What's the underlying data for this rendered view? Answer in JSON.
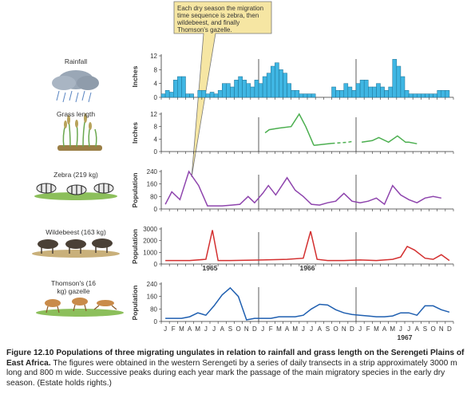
{
  "callout": "Each dry season the migration time sequence is zebra, then wildebeest, and finally Thomson's gazelle.",
  "labels": {
    "rainfall": "Rainfall",
    "grass": "Grass length",
    "zebra": "Zebra (219 kg)",
    "wildebeest": "Wildebeest (163 kg)",
    "thomson": "Thomson's (16 kg) gazelle"
  },
  "ylabels": {
    "inches": "Inches",
    "population": "Population"
  },
  "months": [
    "J",
    "F",
    "M",
    "A",
    "M",
    "J",
    "J",
    "A",
    "S",
    "O",
    "N",
    "D",
    "J",
    "F",
    "M",
    "A",
    "M",
    "J",
    "J",
    "A",
    "S",
    "O",
    "N",
    "D",
    "J",
    "F",
    "M",
    "A",
    "M",
    "J",
    "J",
    "A",
    "S",
    "O",
    "N",
    "D"
  ],
  "years": [
    "1965",
    "1966",
    "1967"
  ],
  "caption": {
    "number": "Figure 12.10",
    "title": "Populations of three migrating ungulates in relation to rainfall and grass length on the Serengeti Plains of East Africa.",
    "body": "The figures were obtained in the western Serengeti by a series of daily transects in a strip approximately 3000 m long and 800 m wide. Successive peaks during each year mark the passage of the main migratory species in the early dry season. (Estate holds rights.)"
  },
  "colors": {
    "rain": "#3fb6e3",
    "grass": "#4caf50",
    "zebra": "#8e44ad",
    "wildebeest": "#d32f2f",
    "thomson": "#1f5fb0"
  },
  "chart_data": [
    {
      "type": "bar",
      "name_label": "Rainfall",
      "ylabel": "Inches",
      "ylim": [
        0,
        12
      ],
      "yticks": [
        0,
        4,
        8,
        12
      ],
      "x": [
        0,
        0.5,
        1,
        1.5,
        2,
        2.5,
        3,
        3.5,
        4,
        4.5,
        5,
        5.5,
        6,
        6.5,
        7,
        7.5,
        8,
        8.5,
        9,
        9.5,
        10,
        10.5,
        11,
        11.5,
        12,
        12.5,
        13,
        13.5,
        14,
        14.5,
        15,
        15.5,
        16,
        16.5,
        17,
        17.5,
        18,
        18.5,
        19,
        19.5,
        20,
        20.5,
        21,
        21.5,
        22,
        22.5,
        23,
        23.5,
        24,
        24.5,
        25,
        25.5,
        26,
        26.5,
        27,
        27.5,
        28,
        28.5,
        29,
        29.5,
        30,
        30.5,
        31,
        31.5,
        32,
        32.5,
        33,
        33.5,
        34,
        34.5,
        35
      ],
      "values": [
        1,
        2,
        1.5,
        5,
        6,
        6,
        1,
        1,
        0,
        2,
        2,
        1,
        1.5,
        1,
        2,
        4,
        4,
        3,
        5,
        6,
        5,
        4,
        3,
        5,
        4,
        6,
        7,
        9,
        10,
        8,
        7,
        4,
        2,
        2,
        1,
        1,
        1,
        1,
        0,
        0,
        0,
        0,
        3,
        2,
        2,
        4,
        3,
        2,
        4,
        5,
        5,
        3,
        3,
        4,
        3,
        2,
        3,
        11,
        9,
        6,
        2,
        1,
        1,
        1,
        1,
        1,
        1,
        1,
        2,
        2,
        2
      ],
      "color": "#3fb6e3"
    },
    {
      "type": "line",
      "name_label": "Grass length",
      "ylabel": "Inches",
      "ylim": [
        0,
        12
      ],
      "yticks": [
        0,
        4,
        8,
        12
      ],
      "segments": [
        {
          "style": "solid",
          "x": [
            12.3,
            12.8,
            14,
            15.5,
            16.5,
            17.3,
            18.3
          ],
          "y": [
            6,
            7,
            7.5,
            8,
            12,
            8,
            2
          ]
        },
        {
          "style": "solid",
          "x": [
            18.3,
            20.5
          ],
          "y": [
            2,
            2.6
          ]
        },
        {
          "style": "dashed",
          "x": [
            20.5,
            22.5,
            23.2
          ],
          "y": [
            2.6,
            3,
            3.3
          ]
        },
        {
          "style": "solid",
          "x": [
            24.2,
            25.5,
            26.3,
            27.5,
            28.6,
            29.6,
            30,
            31
          ],
          "y": [
            3,
            3.5,
            4.5,
            3,
            5,
            3,
            3,
            2.5
          ]
        }
      ],
      "color": "#4caf50"
    },
    {
      "type": "line",
      "name_label": "Zebra (219 kg)",
      "ylabel": "Population",
      "ylim": [
        0,
        240
      ],
      "yticks": [
        0,
        80,
        160,
        240
      ],
      "x": [
        0,
        0.8,
        1.8,
        2.9,
        4.1,
        5.2,
        7,
        8.2,
        9.2,
        10.2,
        11,
        12,
        12.7,
        13.6,
        15,
        16,
        17,
        18,
        19,
        20,
        21,
        22,
        23,
        24,
        25,
        26,
        27,
        28,
        29,
        30,
        31,
        32,
        33,
        34
      ],
      "y": [
        30,
        110,
        60,
        240,
        150,
        20,
        20,
        25,
        30,
        80,
        40,
        100,
        150,
        90,
        200,
        120,
        80,
        30,
        25,
        40,
        50,
        100,
        50,
        40,
        50,
        70,
        30,
        150,
        90,
        60,
        40,
        70,
        80,
        70
      ],
      "color": "#8e44ad"
    },
    {
      "type": "line",
      "name_label": "Wildebeest (163 kg)",
      "ylabel": "Population",
      "ylim": [
        0,
        3000
      ],
      "yticks": [
        0,
        1000,
        2000,
        3000
      ],
      "x": [
        0,
        3,
        5,
        5.8,
        6.5,
        8,
        10,
        12,
        15,
        17,
        17.9,
        18.7,
        20,
        22,
        24,
        26,
        28,
        29,
        29.8,
        30.7,
        32,
        33,
        34,
        35
      ],
      "y": [
        300,
        300,
        400,
        2900,
        300,
        300,
        320,
        350,
        400,
        500,
        2800,
        400,
        300,
        300,
        350,
        300,
        400,
        600,
        1500,
        1200,
        500,
        400,
        800,
        300
      ],
      "color": "#d32f2f"
    },
    {
      "type": "line",
      "name_label": "Thomson's (16 kg) gazelle",
      "ylabel": "Population",
      "ylim": [
        0,
        240
      ],
      "yticks": [
        0,
        80,
        160,
        240
      ],
      "x": [
        0,
        1,
        2,
        3,
        4,
        5,
        6,
        7,
        8,
        9,
        10,
        11,
        12,
        13,
        14,
        15,
        16,
        17,
        18,
        19,
        20,
        21,
        22,
        23,
        24,
        25,
        26,
        27,
        28,
        29,
        30,
        31,
        32,
        33,
        34,
        35
      ],
      "y": [
        20,
        20,
        20,
        30,
        55,
        40,
        100,
        170,
        215,
        160,
        10,
        20,
        20,
        20,
        30,
        30,
        30,
        40,
        80,
        110,
        105,
        75,
        55,
        45,
        40,
        35,
        30,
        30,
        35,
        55,
        55,
        40,
        100,
        100,
        75,
        60
      ],
      "color": "#1f5fb0"
    }
  ]
}
